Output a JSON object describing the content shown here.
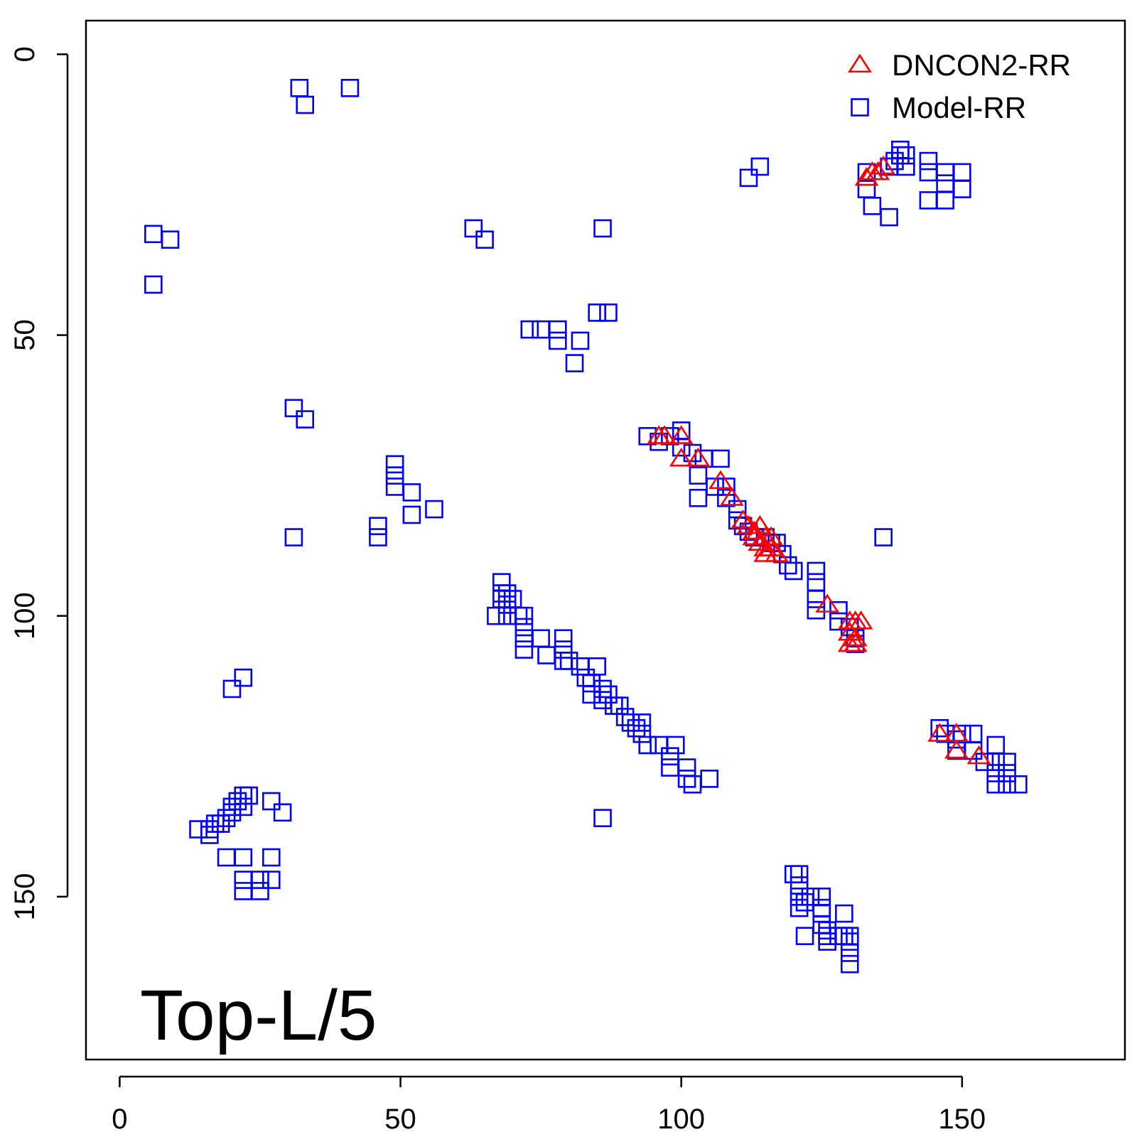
{
  "chart_data": {
    "type": "scatter",
    "title": "",
    "xlabel": "",
    "ylabel": "",
    "annotation": "Top-L/5",
    "legend_position": "top-right",
    "xlim": [
      -6,
      179
    ],
    "ylim": [
      -6,
      179
    ],
    "y_axis_reversed": true,
    "grid": false,
    "x_ticks": [
      "0",
      "50",
      "100",
      "150"
    ],
    "y_ticks": [
      "0",
      "50",
      "100",
      "150"
    ],
    "x_tick_values": [
      0,
      50,
      100,
      150
    ],
    "y_tick_values": [
      0,
      50,
      100,
      150
    ],
    "series": [
      {
        "name": "DNCON2-RR",
        "marker": "triangle-open",
        "color": "#ff0000",
        "points": [
          [
            96,
            68
          ],
          [
            97,
            68
          ],
          [
            100,
            68
          ],
          [
            100,
            72
          ],
          [
            103,
            72
          ],
          [
            107,
            76
          ],
          [
            109,
            79
          ],
          [
            111,
            83
          ],
          [
            112,
            84
          ],
          [
            113,
            85
          ],
          [
            114,
            84
          ],
          [
            113,
            86
          ],
          [
            115,
            86
          ],
          [
            116,
            86
          ],
          [
            114,
            87
          ],
          [
            115,
            88
          ],
          [
            116,
            88
          ],
          [
            117,
            89
          ],
          [
            115,
            89
          ],
          [
            126,
            98
          ],
          [
            130,
            101
          ],
          [
            131,
            101
          ],
          [
            132,
            101
          ],
          [
            130,
            103
          ],
          [
            131,
            104
          ],
          [
            130,
            105
          ],
          [
            131,
            105
          ],
          [
            133,
            22
          ],
          [
            134,
            21
          ],
          [
            135,
            21
          ],
          [
            136,
            20
          ],
          [
            146,
            121
          ],
          [
            149,
            121
          ],
          [
            149,
            124
          ],
          [
            153,
            125
          ]
        ]
      },
      {
        "name": "Model-RR",
        "marker": "square-open",
        "color": "#0000ff",
        "points": [
          [
            32,
            6
          ],
          [
            41,
            6
          ],
          [
            33,
            9
          ],
          [
            112,
            22
          ],
          [
            114,
            20
          ],
          [
            6,
            32
          ],
          [
            9,
            33
          ],
          [
            6,
            41
          ],
          [
            63,
            31
          ],
          [
            65,
            33
          ],
          [
            86,
            31
          ],
          [
            85,
            46
          ],
          [
            87,
            46
          ],
          [
            73,
            49
          ],
          [
            75,
            49
          ],
          [
            78,
            49
          ],
          [
            78,
            51
          ],
          [
            82,
            51
          ],
          [
            81,
            55
          ],
          [
            31,
            63
          ],
          [
            33,
            65
          ],
          [
            31,
            86
          ],
          [
            49,
            73
          ],
          [
            49,
            75
          ],
          [
            49,
            77
          ],
          [
            52,
            78
          ],
          [
            52,
            82
          ],
          [
            56,
            81
          ],
          [
            46,
            84
          ],
          [
            46,
            86
          ],
          [
            137,
            20
          ],
          [
            138,
            19
          ],
          [
            139,
            18
          ],
          [
            139,
            17
          ],
          [
            140,
            18
          ],
          [
            140,
            20
          ],
          [
            144,
            19
          ],
          [
            144,
            21
          ],
          [
            147,
            21
          ],
          [
            147,
            23
          ],
          [
            150,
            21
          ],
          [
            150,
            24
          ],
          [
            133,
            21
          ],
          [
            133,
            24
          ],
          [
            134,
            27
          ],
          [
            137,
            29
          ],
          [
            144,
            26
          ],
          [
            147,
            26
          ],
          [
            94,
            68
          ],
          [
            96,
            69
          ],
          [
            98,
            68
          ],
          [
            100,
            67
          ],
          [
            100,
            70
          ],
          [
            102,
            71
          ],
          [
            104,
            72
          ],
          [
            107,
            72
          ],
          [
            103,
            75
          ],
          [
            106,
            77
          ],
          [
            103,
            79
          ],
          [
            108,
            77
          ],
          [
            108,
            79
          ],
          [
            110,
            81
          ],
          [
            110,
            83
          ],
          [
            111,
            84
          ],
          [
            112,
            85
          ],
          [
            113,
            86
          ],
          [
            115,
            86
          ],
          [
            116,
            87
          ],
          [
            117,
            87
          ],
          [
            118,
            89
          ],
          [
            119,
            91
          ],
          [
            120,
            92
          ],
          [
            124,
            92
          ],
          [
            124,
            94
          ],
          [
            124,
            97
          ],
          [
            124,
            99
          ],
          [
            128,
            99
          ],
          [
            128,
            101
          ],
          [
            130,
            102
          ],
          [
            131,
            104
          ],
          [
            131,
            105
          ],
          [
            136,
            86
          ],
          [
            68,
            94
          ],
          [
            68,
            96
          ],
          [
            68,
            97
          ],
          [
            69,
            96
          ],
          [
            69,
            98
          ],
          [
            70,
            97
          ],
          [
            67,
            100
          ],
          [
            69,
            100
          ],
          [
            71,
            100
          ],
          [
            72,
            100
          ],
          [
            72,
            102
          ],
          [
            72,
            104
          ],
          [
            72,
            106
          ],
          [
            75,
            104
          ],
          [
            76,
            107
          ],
          [
            79,
            104
          ],
          [
            79,
            106
          ],
          [
            79,
            108
          ],
          [
            80,
            108
          ],
          [
            82,
            109
          ],
          [
            83,
            111
          ],
          [
            85,
            109
          ],
          [
            84,
            112
          ],
          [
            84,
            114
          ],
          [
            86,
            113
          ],
          [
            86,
            115
          ],
          [
            87,
            114
          ],
          [
            88,
            116
          ],
          [
            89,
            116
          ],
          [
            90,
            118
          ],
          [
            91,
            119
          ],
          [
            92,
            120
          ],
          [
            93,
            119
          ],
          [
            93,
            121
          ],
          [
            94,
            123
          ],
          [
            96,
            123
          ],
          [
            99,
            123
          ],
          [
            98,
            125
          ],
          [
            98,
            127
          ],
          [
            101,
            127
          ],
          [
            101,
            129
          ],
          [
            102,
            130
          ],
          [
            105,
            129
          ],
          [
            86,
            136
          ],
          [
            20,
            113
          ],
          [
            22,
            111
          ],
          [
            14,
            138
          ],
          [
            16,
            138
          ],
          [
            16,
            139
          ],
          [
            17,
            137
          ],
          [
            18,
            137
          ],
          [
            19,
            136
          ],
          [
            20,
            135
          ],
          [
            20,
            134
          ],
          [
            21,
            133
          ],
          [
            22,
            132
          ],
          [
            22,
            134
          ],
          [
            23,
            132
          ],
          [
            27,
            133
          ],
          [
            29,
            135
          ],
          [
            19,
            143
          ],
          [
            22,
            143
          ],
          [
            22,
            147
          ],
          [
            22,
            149
          ],
          [
            25,
            147
          ],
          [
            25,
            149
          ],
          [
            27,
            143
          ],
          [
            27,
            147
          ],
          [
            120,
            146
          ],
          [
            121,
            146
          ],
          [
            121,
            148
          ],
          [
            121,
            150
          ],
          [
            121,
            152
          ],
          [
            122,
            151
          ],
          [
            123,
            150
          ],
          [
            125,
            150
          ],
          [
            125,
            152
          ],
          [
            125,
            153
          ],
          [
            125,
            155
          ],
          [
            122,
            157
          ],
          [
            126,
            156
          ],
          [
            126,
            157
          ],
          [
            126,
            158
          ],
          [
            128,
            157
          ],
          [
            129,
            153
          ],
          [
            129,
            157
          ],
          [
            130,
            157
          ],
          [
            130,
            158
          ],
          [
            130,
            160
          ],
          [
            130,
            162
          ],
          [
            146,
            120
          ],
          [
            147,
            121
          ],
          [
            149,
            122
          ],
          [
            149,
            124
          ],
          [
            150,
            121
          ],
          [
            152,
            121
          ],
          [
            152,
            124
          ],
          [
            154,
            126
          ],
          [
            156,
            123
          ],
          [
            156,
            126
          ],
          [
            156,
            128
          ],
          [
            156,
            130
          ],
          [
            158,
            126
          ],
          [
            158,
            128
          ],
          [
            158,
            130
          ],
          [
            160,
            130
          ]
        ]
      }
    ]
  }
}
